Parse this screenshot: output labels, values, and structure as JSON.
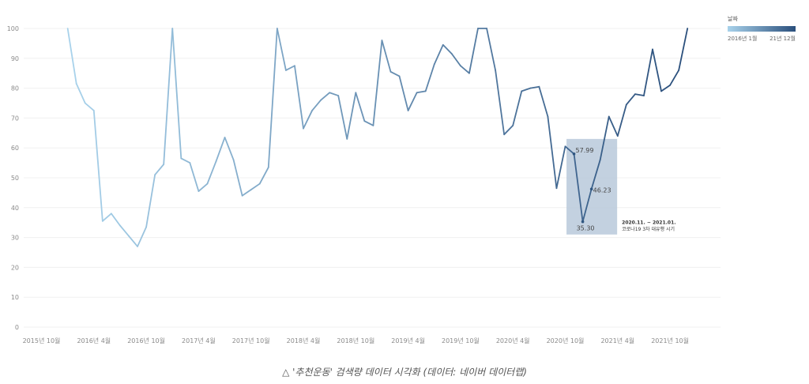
{
  "chart_data": {
    "type": "line",
    "title": "",
    "xlabel": "",
    "ylabel": "",
    "ylim": [
      0,
      100
    ],
    "yticks": [
      0,
      10,
      20,
      30,
      40,
      50,
      60,
      70,
      80,
      90,
      100
    ],
    "x_tick_labels": [
      "2015년 10월",
      "2016년 4월",
      "2016년 10월",
      "2017년 4월",
      "2017년 10월",
      "2018년 4월",
      "2018년 10월",
      "2019년 4월",
      "2019년 10월",
      "2020년 4월",
      "2020년 10월",
      "2021년 4월",
      "2021년 10월"
    ],
    "series": [
      {
        "start": "2016-01",
        "values": [
          100,
          81.5,
          75,
          72.5,
          35.5,
          38,
          34,
          30.5,
          27,
          33.5,
          51,
          54.5,
          100,
          56.5,
          55,
          45.5,
          48,
          55.5,
          63.5,
          56,
          44,
          46,
          48,
          53.5,
          100,
          86,
          87.5,
          66.5,
          72.5,
          76,
          78.5,
          77.5,
          63,
          78.5,
          69,
          67.5,
          96,
          85.5,
          84,
          72.5,
          78.5,
          79,
          88,
          94.5,
          91.5,
          87.5,
          85,
          100,
          100,
          86,
          64.5,
          67.5,
          79,
          80,
          80.5,
          70.5,
          46.5,
          60.5,
          57.99,
          35.3,
          46.23,
          56,
          70.5,
          64,
          74.5,
          78,
          77.5,
          93,
          79,
          81,
          86,
          100
        ]
      }
    ],
    "grid": true,
    "annotations": [
      {
        "label": "57.99",
        "x": "2020-11",
        "y": 57.99
      },
      {
        "label": "35.30",
        "x": "2020-12",
        "y": 35.3
      },
      {
        "label": "46.23",
        "x": "2021-01",
        "y": 46.23
      }
    ],
    "highlight": {
      "x_range": [
        "2020-11",
        "2021-01"
      ],
      "note_line1": "2020.11. ~ 2021.01.",
      "note_line2": "코로나19 3차 대유행 시기"
    },
    "legend": {
      "title": "날짜",
      "min_label": "2016년 1월",
      "max_label": "21년 12월",
      "position": "top-right",
      "color_low": "#a8d2eb",
      "color_high": "#2a4f7c"
    }
  },
  "caption": "△ '추천운동' 검색량 데이터 시각화 (데이터: 네이버 데이터랩)"
}
